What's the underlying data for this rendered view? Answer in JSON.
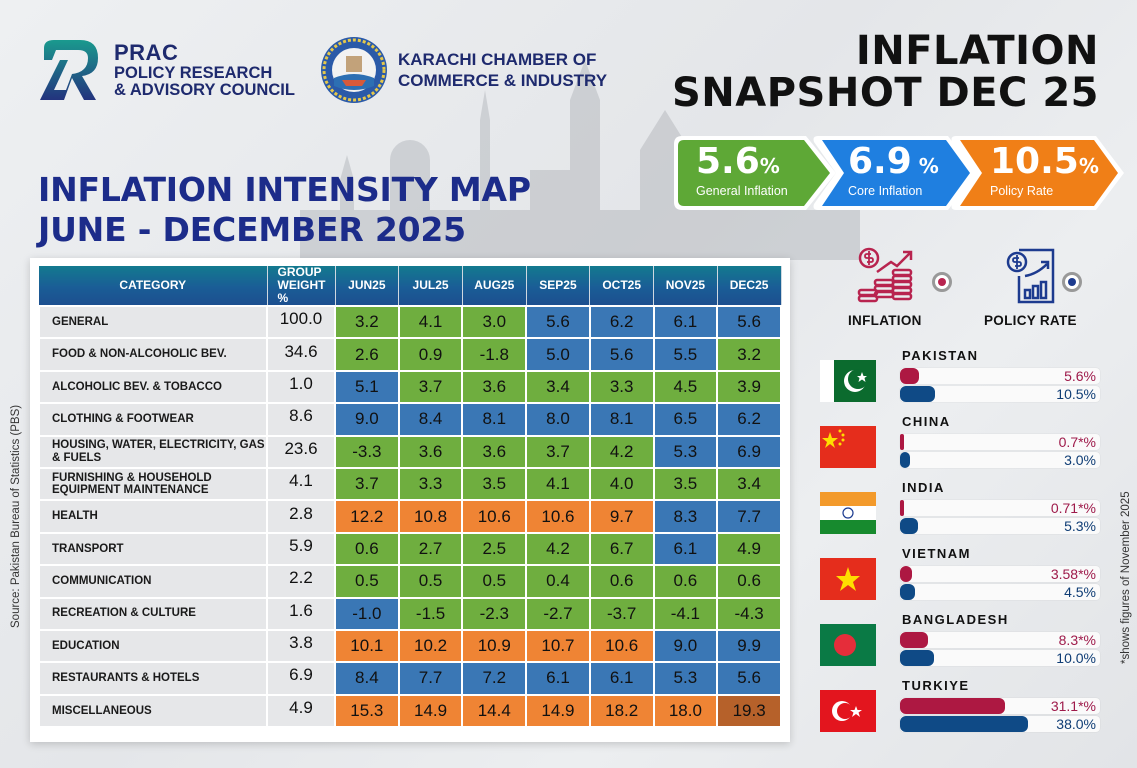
{
  "header": {
    "prac": {
      "acronym": "PRAC",
      "line1": "POLICY RESEARCH",
      "line2": "& ADVISORY COUNCIL"
    },
    "kcci": {
      "line1": "KARACHI CHAMBER OF",
      "line2": "COMMERCE & INDUSTRY"
    },
    "snapshot_title_line1": "INFLATION",
    "snapshot_title_line2": "SNAPSHOT DEC 25"
  },
  "colors": {
    "green": "#6fae3f",
    "blue": "#3a77b5",
    "orange": "#ef8434",
    "brown": "#b6612a",
    "inflation_bar": "#ad1842",
    "policy_bar": "#0f4a86",
    "title_navy": "#1c2c8a"
  },
  "kpis": [
    {
      "value": "5.6",
      "unit": "%",
      "label": "General Inflation",
      "color": "#5ea836"
    },
    {
      "value": "6.9",
      "unit": " %",
      "label": "Core Inflation",
      "color": "#1f7fe0"
    },
    {
      "value": "10.5",
      "unit": "%",
      "label": "Policy Rate",
      "color": "#f07f17"
    }
  ],
  "map_title": {
    "line1": "INFLATION INTENSITY MAP",
    "line2": "JUNE - DECEMBER 2025"
  },
  "source_note": "Source: Pakistan Bureau of Statistics (PBS)",
  "foot_note": "*shows  figures of November 2025",
  "table": {
    "headers": {
      "category": "CATEGORY",
      "group_weight_line1": "GROUP",
      "group_weight_line2": "WEIGHT %",
      "months": [
        "JUN25",
        "JUL25",
        "AUG25",
        "SEP25",
        "OCT25",
        "NOV25",
        "DEC25"
      ]
    },
    "rows": [
      {
        "category": "GENERAL",
        "weight": "100.0",
        "values": [
          "3.2",
          "4.1",
          "3.0",
          "5.6",
          "6.2",
          "6.1",
          "5.6"
        ],
        "colors": [
          "green",
          "green",
          "green",
          "blue",
          "blue",
          "blue",
          "blue"
        ]
      },
      {
        "category": "FOOD & NON-ALCOHOLIC BEV.",
        "weight": "34.6",
        "values": [
          "2.6",
          "0.9",
          "-1.8",
          "5.0",
          "5.6",
          "5.5",
          "3.2"
        ],
        "colors": [
          "green",
          "green",
          "green",
          "blue",
          "blue",
          "blue",
          "green"
        ]
      },
      {
        "category": "ALCOHOLIC BEV. & TOBACCO",
        "weight": "1.0",
        "values": [
          "5.1",
          "3.7",
          "3.6",
          "3.4",
          "3.3",
          "4.5",
          "3.9"
        ],
        "colors": [
          "blue",
          "green",
          "green",
          "green",
          "green",
          "green",
          "green"
        ]
      },
      {
        "category": "CLOTHING & FOOTWEAR",
        "weight": "8.6",
        "values": [
          "9.0",
          "8.4",
          "8.1",
          "8.0",
          "8.1",
          "6.5",
          "6.2"
        ],
        "colors": [
          "blue",
          "blue",
          "blue",
          "blue",
          "blue",
          "blue",
          "blue"
        ]
      },
      {
        "category": "HOUSING, WATER, ELECTRICITY, GAS & FUELS",
        "weight": "23.6",
        "values": [
          "-3.3",
          "3.6",
          "3.6",
          "3.7",
          "4.2",
          "5.3",
          "6.9"
        ],
        "colors": [
          "green",
          "green",
          "green",
          "green",
          "green",
          "blue",
          "blue"
        ]
      },
      {
        "category": "FURNISHING & HOUSEHOLD EQUIPMENT MAINTENANCE",
        "weight": "4.1",
        "values": [
          "3.7",
          "3.3",
          "3.5",
          "4.1",
          "4.0",
          "3.5",
          "3.4"
        ],
        "colors": [
          "green",
          "green",
          "green",
          "green",
          "green",
          "green",
          "green"
        ]
      },
      {
        "category": "HEALTH",
        "weight": "2.8",
        "values": [
          "12.2",
          "10.8",
          "10.6",
          "10.6",
          "9.7",
          "8.3",
          "7.7"
        ],
        "colors": [
          "orange",
          "orange",
          "orange",
          "orange",
          "orange",
          "blue",
          "blue"
        ]
      },
      {
        "category": "TRANSPORT",
        "weight": "5.9",
        "values": [
          "0.6",
          "2.7",
          "2.5",
          "4.2",
          "6.7",
          "6.1",
          "4.9"
        ],
        "colors": [
          "green",
          "green",
          "green",
          "green",
          "green",
          "blue",
          "green"
        ]
      },
      {
        "category": "COMMUNICATION",
        "weight": "2.2",
        "values": [
          "0.5",
          "0.5",
          "0.5",
          "0.4",
          "0.6",
          "0.6",
          "0.6"
        ],
        "colors": [
          "green",
          "green",
          "green",
          "green",
          "green",
          "green",
          "green"
        ]
      },
      {
        "category": "RECREATION & CULTURE",
        "weight": "1.6",
        "values": [
          "-1.0",
          "-1.5",
          "-2.3",
          "-2.7",
          "-3.7",
          "-4.1",
          "-4.3"
        ],
        "colors": [
          "blue",
          "green",
          "green",
          "green",
          "green",
          "green",
          "green"
        ]
      },
      {
        "category": "EDUCATION",
        "weight": "3.8",
        "values": [
          "10.1",
          "10.2",
          "10.9",
          "10.7",
          "10.6",
          "9.0",
          "9.9"
        ],
        "colors": [
          "orange",
          "orange",
          "orange",
          "orange",
          "orange",
          "blue",
          "blue"
        ]
      },
      {
        "category": "RESTAURANTS & HOTELS",
        "weight": "6.9",
        "values": [
          "8.4",
          "7.7",
          "7.2",
          "6.1",
          "6.1",
          "5.3",
          "5.6"
        ],
        "colors": [
          "blue",
          "blue",
          "blue",
          "blue",
          "blue",
          "blue",
          "blue"
        ]
      },
      {
        "category": "MISCELLANEOUS",
        "weight": "4.9",
        "values": [
          "15.3",
          "14.9",
          "14.4",
          "14.9",
          "18.2",
          "18.0",
          "19.3"
        ],
        "colors": [
          "orange",
          "orange",
          "orange",
          "orange",
          "orange",
          "orange",
          "brown"
        ]
      }
    ]
  },
  "comparison": {
    "legend": {
      "inflation": "INFLATION",
      "policy_rate": "POLICY RATE"
    },
    "scale_max": 38.0,
    "countries": [
      {
        "name": "PAKISTAN",
        "flag": "pakistan-flag",
        "inflation": 5.6,
        "inflation_label": "5.6%",
        "policy": 10.5,
        "policy_label": "10.5%"
      },
      {
        "name": "CHINA",
        "flag": "china-flag",
        "inflation": 0.7,
        "inflation_label": "0.7*%",
        "policy": 3.0,
        "policy_label": "3.0%"
      },
      {
        "name": "INDIA",
        "flag": "india-flag",
        "inflation": 0.71,
        "inflation_label": "0.71*%",
        "policy": 5.3,
        "policy_label": "5.3%"
      },
      {
        "name": "VIETNAM",
        "flag": "vietnam-flag",
        "inflation": 3.58,
        "inflation_label": "3.58*%",
        "policy": 4.5,
        "policy_label": "4.5%"
      },
      {
        "name": "BANGLADESH",
        "flag": "bangladesh-flag",
        "inflation": 8.3,
        "inflation_label": "8.3*%",
        "policy": 10.0,
        "policy_label": "10.0%"
      },
      {
        "name": "TURKIYE",
        "flag": "turkiye-flag",
        "inflation": 31.1,
        "inflation_label": "31.1*%",
        "policy": 38.0,
        "policy_label": "38.0%"
      }
    ]
  }
}
